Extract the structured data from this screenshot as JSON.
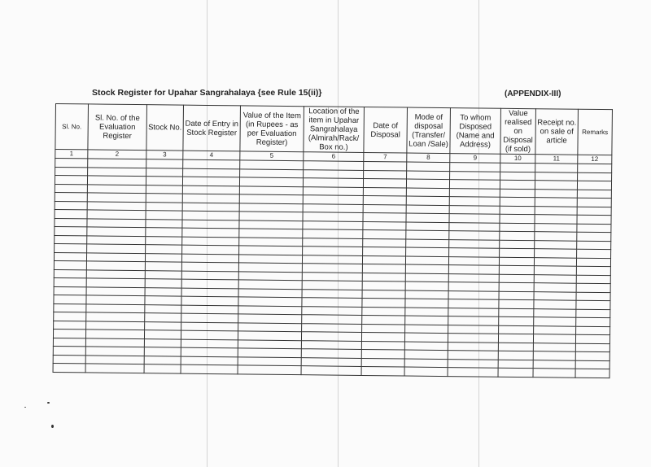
{
  "document": {
    "title": "Stock Register for Upahar Sangrahalaya {see Rule 15(ii)}",
    "appendix": "(APPENDIX-III)",
    "columns": [
      {
        "header": "Sl. No.",
        "number": "1"
      },
      {
        "header": "Sl. No. of the Evaluation Register",
        "number": "2"
      },
      {
        "header": "Stock No.",
        "number": "3"
      },
      {
        "header": "Date of Entry in Stock Register",
        "number": "4"
      },
      {
        "header": "Value of the Item (in Rupees - as per Evaluation Register)",
        "number": "5"
      },
      {
        "header": "Location of the item in Upahar Sangrahalaya (Almirah/Rack/ Box no.)",
        "number": "6"
      },
      {
        "header": "Date of Disposal",
        "number": "7"
      },
      {
        "header": "Mode of disposal (Transfer/ Loan /Sale)",
        "number": "8"
      },
      {
        "header": "To whom Disposed (Name and Address)",
        "number": "9"
      },
      {
        "header": "Value realised on Disposal (if sold)",
        "number": "10"
      },
      {
        "header": "Receipt no. on sale of article",
        "number": "11"
      },
      {
        "header": "Remarks",
        "number": "12"
      }
    ]
  }
}
